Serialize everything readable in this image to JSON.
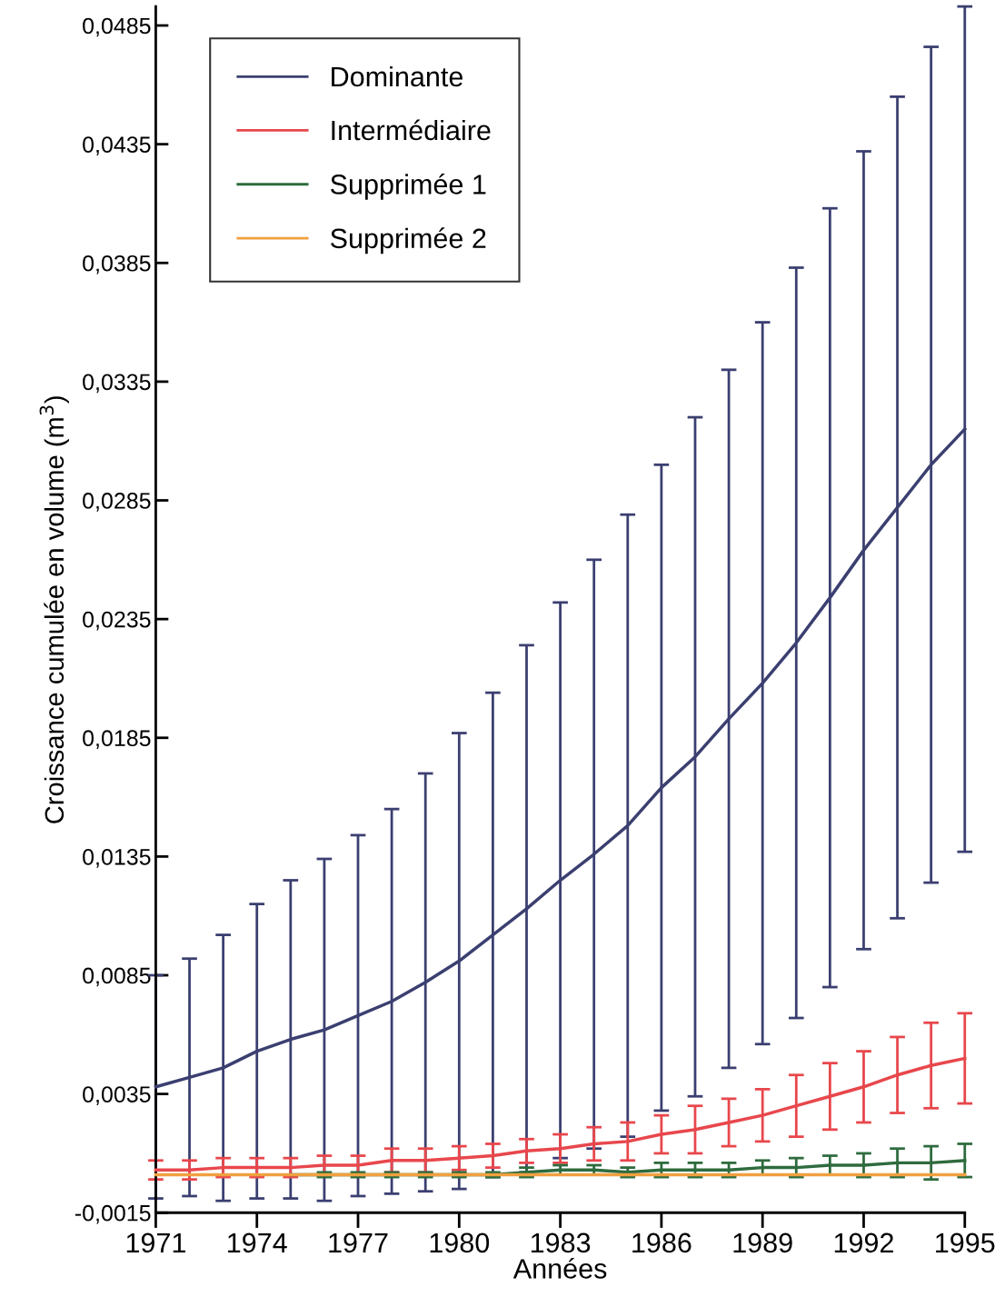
{
  "chart_data": {
    "type": "line",
    "xlabel": "Années",
    "ylabel": "Croissance cumulée en volume (m$^{3}$)",
    "x": [
      1971,
      1972,
      1973,
      1974,
      1975,
      1976,
      1977,
      1978,
      1979,
      1980,
      1981,
      1982,
      1983,
      1984,
      1985,
      1986,
      1987,
      1988,
      1989,
      1990,
      1991,
      1992,
      1993,
      1994,
      1995
    ],
    "series": [
      {
        "name": "Dominante",
        "color": "#3b3f70",
        "values": [
          0.0038,
          0.0042,
          0.0046,
          0.0053,
          0.0058,
          0.0062,
          0.0068,
          0.0074,
          0.0082,
          0.0091,
          0.0102,
          0.0113,
          0.0125,
          0.0136,
          0.0148,
          0.0164,
          0.0177,
          0.0193,
          0.0208,
          0.0225,
          0.0244,
          0.0264,
          0.0282,
          0.03,
          0.0315
        ],
        "errors": [
          0.0047,
          0.005,
          0.0056,
          0.0062,
          0.0067,
          0.0072,
          0.0076,
          0.0081,
          0.0088,
          0.0096,
          0.0102,
          0.0111,
          0.0117,
          0.0124,
          0.0131,
          0.0136,
          0.0143,
          0.0147,
          0.0152,
          0.0158,
          0.0164,
          0.0168,
          0.0173,
          0.0176,
          0.0178
        ]
      },
      {
        "name": "Intermédiaire",
        "color": "#e8474c",
        "values": [
          0.0003,
          0.0003,
          0.0004,
          0.0004,
          0.0004,
          0.0005,
          0.0005,
          0.0007,
          0.0007,
          0.0008,
          0.0009,
          0.0011,
          0.0012,
          0.0014,
          0.0015,
          0.0018,
          0.002,
          0.0023,
          0.0026,
          0.003,
          0.0034,
          0.0038,
          0.0043,
          0.0047,
          0.005
        ],
        "errors": [
          0.0004,
          0.0004,
          0.0004,
          0.0004,
          0.0004,
          0.0004,
          0.0004,
          0.0005,
          0.0005,
          0.0005,
          0.0005,
          0.0005,
          0.0006,
          0.0007,
          0.0008,
          0.0008,
          0.001,
          0.001,
          0.0011,
          0.0013,
          0.0014,
          0.0015,
          0.0016,
          0.0018,
          0.0019
        ]
      },
      {
        "name": "Supprimée 1",
        "color": "#2e6b3e",
        "values": [
          null,
          null,
          null,
          null,
          0.0001,
          0.0001,
          0.0001,
          0.0001,
          0.0001,
          0.0001,
          0.0001,
          0.0002,
          0.0003,
          0.0003,
          0.0002,
          0.0003,
          0.0003,
          0.0003,
          0.0004,
          0.0004,
          0.0005,
          0.0005,
          0.0006,
          0.0006,
          0.0007
        ],
        "errors": [
          null,
          null,
          null,
          null,
          null,
          0.0001,
          0.0001,
          0.0001,
          0.0001,
          0.0001,
          0.0001,
          0.0002,
          0.0002,
          0.0002,
          0.0002,
          0.0003,
          0.0003,
          0.0003,
          0.0003,
          0.0004,
          0.0004,
          0.0005,
          0.0006,
          0.0007,
          0.0007
        ]
      },
      {
        "name": "Supprimée 2",
        "color": "#f0a040",
        "values": [
          0.0001,
          0.0001,
          0.0001,
          0.0001,
          0.0001,
          0.0001,
          0.0001,
          0.0001,
          0.0001,
          0.0001,
          0.0001,
          0.0001,
          0.0001,
          0.0001,
          0.0001,
          0.0001,
          0.0001,
          0.0001,
          0.0001,
          0.0001,
          0.0001,
          0.0001,
          0.0001,
          0.0001,
          0.0001
        ]
      }
    ],
    "xlim": [
      1971,
      1995
    ],
    "xticks": [
      1971,
      1974,
      1977,
      1980,
      1983,
      1986,
      1989,
      1992,
      1995
    ],
    "ylim": [
      -0.0015,
      0.0493
    ],
    "yticks": [
      {
        "value": -0.0015,
        "label": "-0,0015"
      },
      {
        "value": 0.0035,
        "label": "0,0035"
      },
      {
        "value": 0.0085,
        "label": "0,0085"
      },
      {
        "value": 0.0135,
        "label": "0,0135"
      },
      {
        "value": 0.0185,
        "label": "0,0185"
      },
      {
        "value": 0.0235,
        "label": "0,0235"
      },
      {
        "value": 0.0285,
        "label": "0,0285"
      },
      {
        "value": 0.0335,
        "label": "0,0335"
      },
      {
        "value": 0.0385,
        "label": "0,0385"
      },
      {
        "value": 0.0435,
        "label": "0,0435"
      },
      {
        "value": 0.0485,
        "label": "0,0485"
      }
    ],
    "grid": false,
    "legend": "top left",
    "marker": "none",
    "line_style": "solid"
  }
}
